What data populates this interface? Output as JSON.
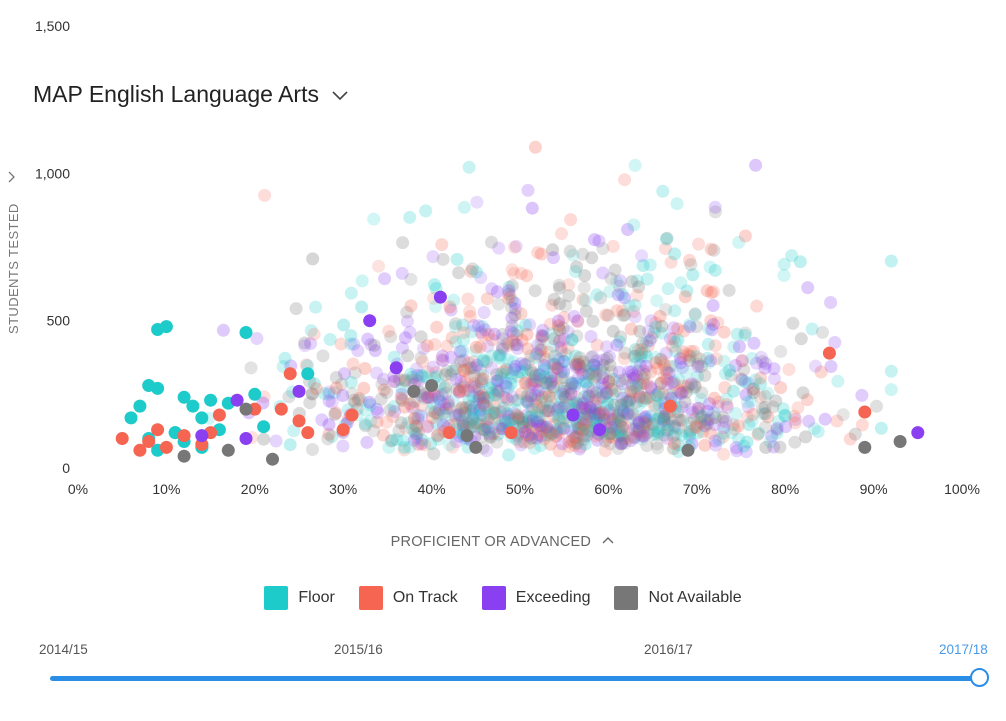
{
  "chart_data": {
    "type": "scatter",
    "title": "MAP English Language Arts",
    "xlabel": "PROFICIENT OR ADVANCED",
    "ylabel": "STUDENTS TESTED",
    "xlim": [
      0,
      100
    ],
    "ylim": [
      0,
      1500
    ],
    "x_ticks": [
      "0%",
      "10%",
      "20%",
      "30%",
      "40%",
      "50%",
      "60%",
      "70%",
      "80%",
      "90%",
      "100%"
    ],
    "y_ticks": [
      "0",
      "500",
      "1,000",
      "1,500"
    ],
    "legend": "bottom-center",
    "grid": false,
    "series": [
      {
        "name": "Floor",
        "color": "#1ecbcb",
        "x": [
          7,
          8,
          9,
          9,
          10,
          11,
          12,
          13,
          14,
          15,
          16,
          17,
          19,
          20,
          21,
          6,
          8,
          9,
          11,
          12,
          14,
          26
        ],
        "y": [
          210,
          280,
          270,
          470,
          480,
          120,
          240,
          210,
          170,
          230,
          130,
          220,
          460,
          250,
          140,
          170,
          100,
          60,
          120,
          90,
          70,
          320
        ]
      },
      {
        "name": "On Track",
        "color": "#f56551",
        "x": [
          5,
          7,
          8,
          9,
          10,
          12,
          14,
          15,
          16,
          20,
          23,
          24,
          25,
          26,
          30,
          31,
          42,
          49,
          67,
          85,
          89
        ],
        "y": [
          100,
          60,
          90,
          130,
          70,
          110,
          80,
          120,
          180,
          200,
          200,
          320,
          160,
          120,
          130,
          180,
          120,
          120,
          210,
          390,
          190
        ]
      },
      {
        "name": "Exceeding",
        "color": "#8a3ff0",
        "x": [
          14,
          18,
          19,
          25,
          33,
          36,
          41,
          56,
          59,
          95
        ],
        "y": [
          110,
          230,
          100,
          260,
          500,
          340,
          580,
          180,
          130,
          120
        ]
      },
      {
        "name": "Not Available",
        "color": "#777777",
        "x": [
          12,
          17,
          19,
          22,
          38,
          40,
          44,
          45,
          69,
          89,
          93
        ],
        "y": [
          40,
          60,
          200,
          30,
          260,
          280,
          110,
          70,
          60,
          70,
          90
        ]
      }
    ]
  },
  "slider": {
    "years": [
      "2014/15",
      "2015/16",
      "2016/17",
      "2017/18"
    ],
    "selected": "2017/18"
  }
}
